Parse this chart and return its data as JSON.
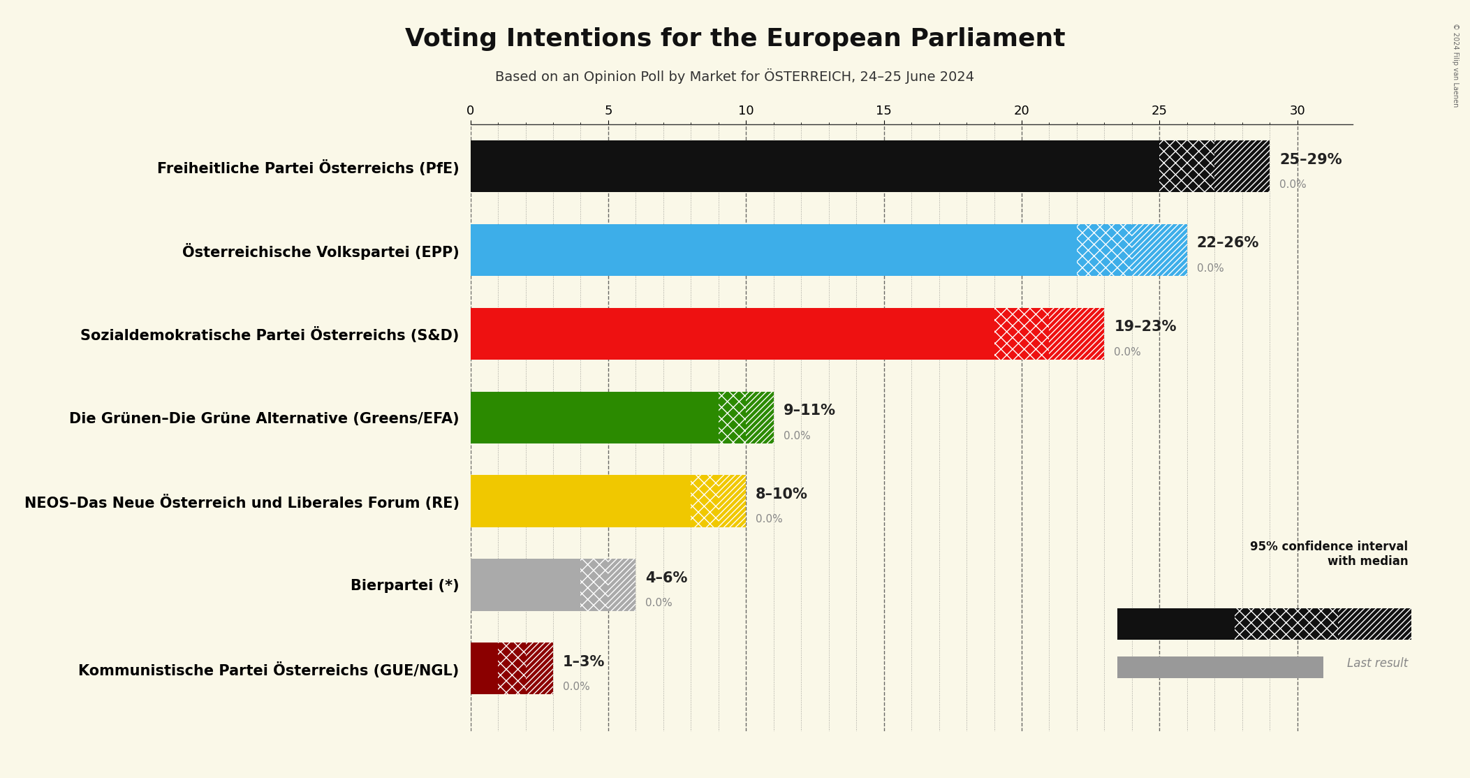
{
  "title": "Voting Intentions for the European Parliament",
  "subtitle": "Based on an Opinion Poll by Market for ÖSTERREICH, 24–25 June 2024",
  "background_color": "#faf8e8",
  "parties": [
    "Freiheitliche Partei Österreichs (PfE)",
    "Österreichische Volkspartei (EPP)",
    "Sozialdemokratische Partei Österreichs (S&D)",
    "Die Grünen–Die Grüne Alternative (Greens/EFA)",
    "NEOS–Das Neue Österreich und Liberales Forum (RE)",
    "Bierpartei (*)",
    "Kommunistische Partei Österreichs (GUE/NGL)"
  ],
  "median": [
    27,
    24,
    21,
    10,
    9,
    5,
    2
  ],
  "low": [
    25,
    22,
    19,
    9,
    8,
    4,
    1
  ],
  "high": [
    29,
    26,
    23,
    11,
    10,
    6,
    3
  ],
  "colors": [
    "#111111",
    "#3daee9",
    "#ee1111",
    "#2b8a00",
    "#f0c800",
    "#aaaaaa",
    "#8b0000"
  ],
  "labels": [
    "25–29%",
    "22–26%",
    "19–23%",
    "9–11%",
    "8–10%",
    "4–6%",
    "1–3%"
  ],
  "xlim": [
    0,
    32
  ],
  "title_fontsize": 26,
  "subtitle_fontsize": 14,
  "bar_label_fontsize": 15,
  "party_label_fontsize": 15,
  "tick_fontsize": 13,
  "copyright": "© 2024 Filip van Laenen",
  "legend_ci_text": "95% confidence interval\nwith median",
  "legend_last_text": "Last result",
  "last_result_color": "#999999"
}
